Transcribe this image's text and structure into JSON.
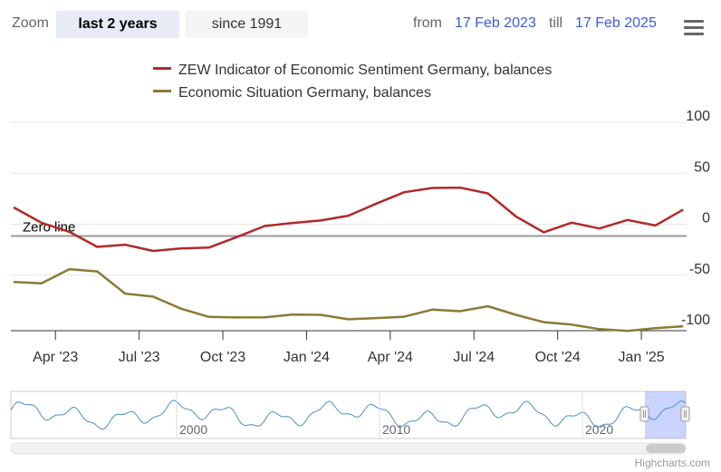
{
  "toolbar": {
    "zoom_label": "Zoom",
    "buttons": [
      {
        "label": "last 2 years",
        "active": true
      },
      {
        "label": "since 1991",
        "active": false
      }
    ],
    "from_label": "from",
    "from_value": "17 Feb 2023",
    "till_label": "till",
    "till_value": "17 Feb 2025"
  },
  "legend": [
    {
      "name": "ZEW Indicator of Economic Sentiment Germany, balances",
      "color": "#b02a2a"
    },
    {
      "name": "Economic Situation Germany, balances",
      "color": "#8c7a36"
    }
  ],
  "credits": "Highcharts.com",
  "chart_data": {
    "type": "line",
    "title": "",
    "xlabel": "",
    "ylabel": "",
    "ylim": [
      -100,
      100
    ],
    "y_ticks": [
      "100",
      "50",
      "0",
      "-50",
      "-100"
    ],
    "x_ticks": [
      "Apr '23",
      "Jul '23",
      "Oct '23",
      "Jan '24",
      "Apr '24",
      "Jul '24",
      "Oct '24",
      "Jan '25"
    ],
    "plot_line": {
      "value": 0,
      "label": "Zero line"
    },
    "x": [
      "Feb 2023",
      "Mar 2023",
      "Apr 2023",
      "May 2023",
      "Jun 2023",
      "Jul 2023",
      "Aug 2023",
      "Sep 2023",
      "Oct 2023",
      "Nov 2023",
      "Dec 2023",
      "Jan 2024",
      "Feb 2024",
      "Mar 2024",
      "Apr 2024",
      "May 2024",
      "Jun 2024",
      "Jul 2024",
      "Aug 2024",
      "Sep 2024",
      "Oct 2024",
      "Nov 2024",
      "Dec 2024",
      "Jan 2025",
      "Feb 2025"
    ],
    "series": [
      {
        "name": "ZEW Indicator of Economic Sentiment Germany, balances",
        "color": "#b02a2a",
        "values": [
          28.1,
          13.0,
          4.1,
          -10.7,
          -8.5,
          -14.7,
          -12.3,
          -11.4,
          -1.1,
          9.8,
          12.8,
          15.2,
          19.9,
          31.7,
          42.9,
          47.1,
          47.5,
          41.8,
          19.2,
          3.6,
          13.1,
          7.4,
          15.7,
          10.3,
          26.0
        ]
      },
      {
        "name": "Economic Situation Germany, balances",
        "color": "#8c7a36",
        "values": [
          -45.1,
          -46.5,
          -32.5,
          -34.8,
          -56.5,
          -59.5,
          -71.3,
          -79.4,
          -79.9,
          -79.8,
          -77.1,
          -77.3,
          -81.7,
          -80.5,
          -79.2,
          -72.3,
          -73.8,
          -68.9,
          -77.3,
          -84.5,
          -86.9,
          -91.4,
          -93.1,
          -90.4,
          -88.5
        ]
      }
    ],
    "navigator": {
      "x_ticks": [
        "2000",
        "2010",
        "2020"
      ]
    }
  }
}
